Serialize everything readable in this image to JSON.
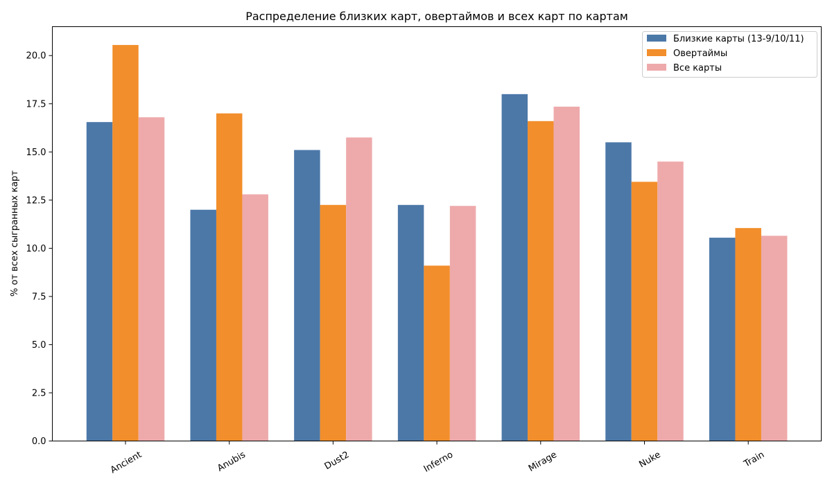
{
  "chart_data": {
    "type": "bar",
    "title": "Распределение близких карт, овертаймов и всех карт по картам",
    "xlabel": "",
    "ylabel": "% от всех сыгранных карт",
    "categories": [
      "Ancient",
      "Anubis",
      "Dust2",
      "Inferno",
      "Mirage",
      "Nuke",
      "Train"
    ],
    "ylim": [
      0,
      21.5
    ],
    "yticks": [
      "0.0",
      "2.5",
      "5.0",
      "7.5",
      "10.0",
      "12.5",
      "15.0",
      "17.5",
      "20.0"
    ],
    "ytick_values": [
      0,
      2.5,
      5,
      7.5,
      10,
      12.5,
      15,
      17.5,
      20
    ],
    "grid": false,
    "legend_position": "top-right",
    "series": [
      {
        "name": "Близкие карты (13-9/10/11)",
        "color": "#4c78a8",
        "values": [
          16.55,
          12.0,
          15.1,
          12.25,
          18.0,
          15.5,
          10.55
        ]
      },
      {
        "name": "Овертаймы",
        "color": "#f28e2b",
        "values": [
          20.55,
          17.0,
          12.25,
          9.1,
          16.6,
          13.45,
          11.05
        ]
      },
      {
        "name": "Все карты",
        "color": "#eeaaab",
        "values": [
          16.8,
          12.8,
          15.75,
          12.2,
          17.35,
          14.5,
          10.65
        ]
      }
    ]
  }
}
